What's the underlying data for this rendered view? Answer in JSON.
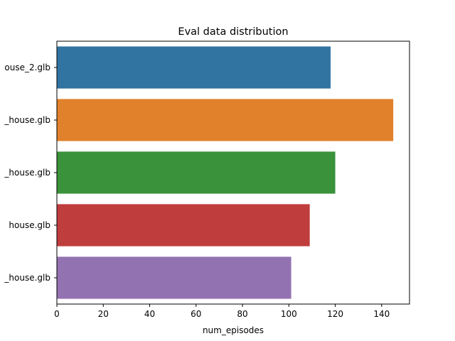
{
  "chart_data": {
    "type": "bar",
    "orientation": "horizontal",
    "title": "Eval data distribution",
    "xlabel": "num_episodes",
    "ylabel": "",
    "categories": [
      "ouse_2.glb",
      "_house.glb",
      "_house.glb",
      "house.glb",
      "_house.glb"
    ],
    "values": [
      118,
      145,
      120,
      109,
      101
    ],
    "colors": [
      "#3274a1",
      "#e1812c",
      "#3a923a",
      "#c03d3e",
      "#9372b2"
    ],
    "xlim": [
      0,
      152
    ],
    "xticks": [
      0,
      20,
      40,
      60,
      80,
      100,
      120,
      140
    ],
    "grid": false,
    "legend": "none"
  }
}
